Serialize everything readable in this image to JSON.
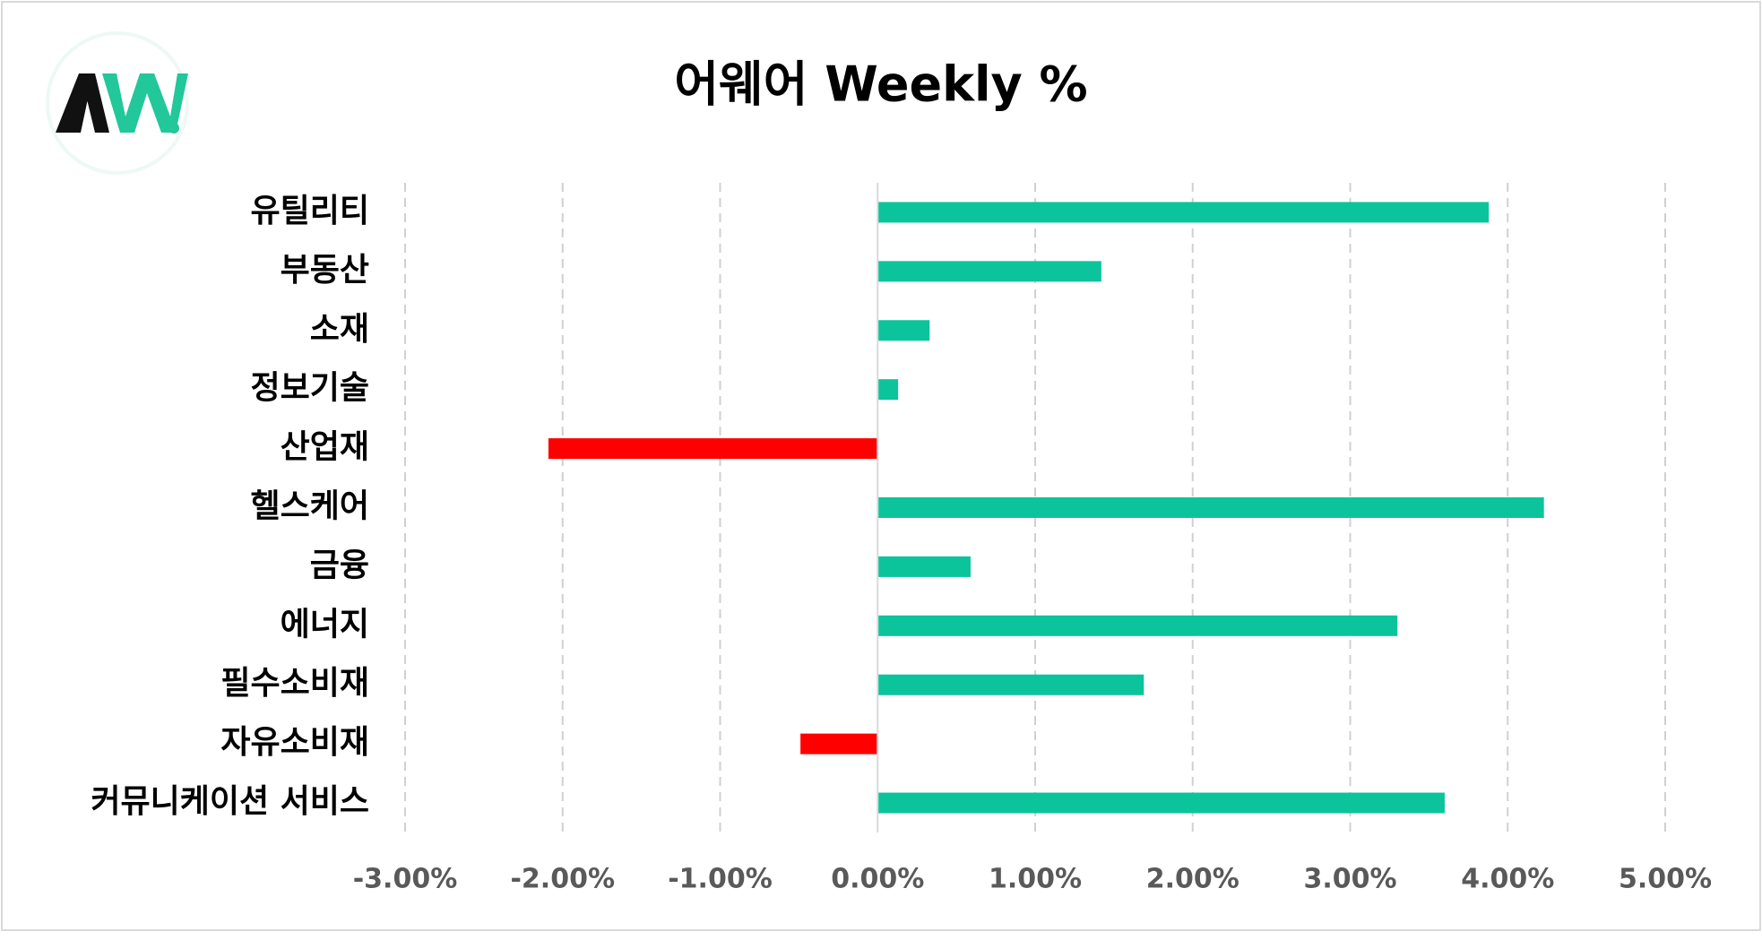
{
  "chart_data": {
    "type": "barh",
    "title": "어웨어 Weekly %",
    "categories": [
      "유틸리티",
      "부동산",
      "소재",
      "정보기술",
      "산업재",
      "헬스케어",
      "금융",
      "에너지",
      "필수소비재",
      "자유소비재",
      "커뮤니케이션 서비스"
    ],
    "values": [
      3.88,
      1.42,
      0.33,
      0.13,
      -2.09,
      4.23,
      0.59,
      3.3,
      1.69,
      -0.49,
      3.6
    ],
    "positive_color": "#0cc49b",
    "negative_color": "#ff0000",
    "xlim": [
      -3,
      5
    ],
    "xticks": [
      {
        "value": -3,
        "label": "-3.00%"
      },
      {
        "value": -2,
        "label": "-2.00%"
      },
      {
        "value": -1,
        "label": "-1.00%"
      },
      {
        "value": 0,
        "label": "0.00%"
      },
      {
        "value": 1,
        "label": "1.00%"
      },
      {
        "value": 2,
        "label": "2.00%"
      },
      {
        "value": 3,
        "label": "3.00%"
      },
      {
        "value": 4,
        "label": "4.00%"
      },
      {
        "value": 5,
        "label": "5.00%"
      }
    ],
    "grid": true
  }
}
